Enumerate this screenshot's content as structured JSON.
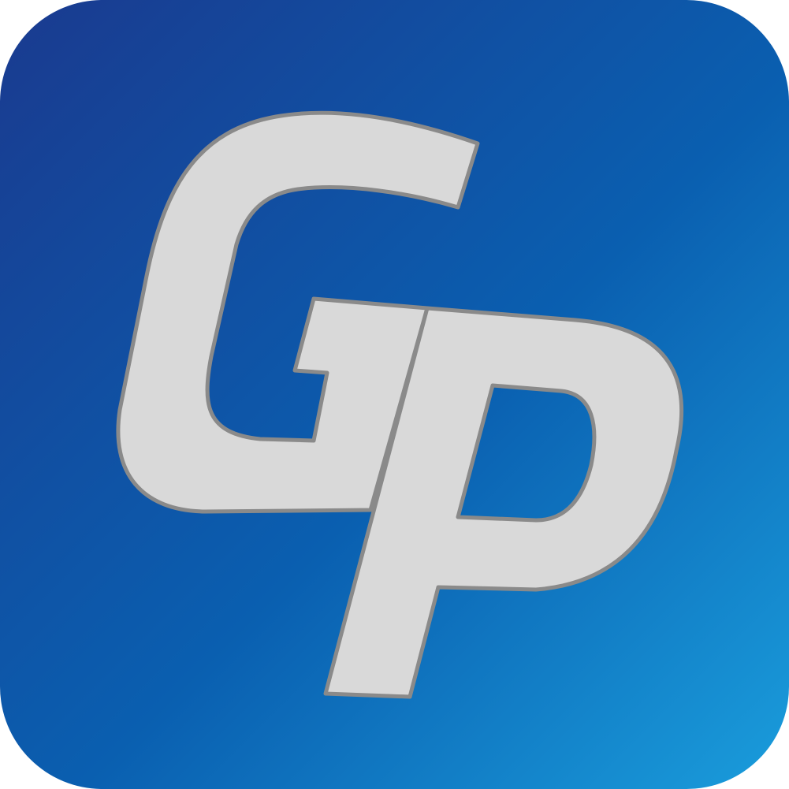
{
  "logo": {
    "lettering": "GP",
    "colors": {
      "gradient_start": "#1a3a8f",
      "gradient_mid": "#0a5fb0",
      "gradient_end": "#1a9ddc",
      "letter_fill": "#d9d9d9",
      "letter_stroke": "#8a8a8a"
    }
  }
}
